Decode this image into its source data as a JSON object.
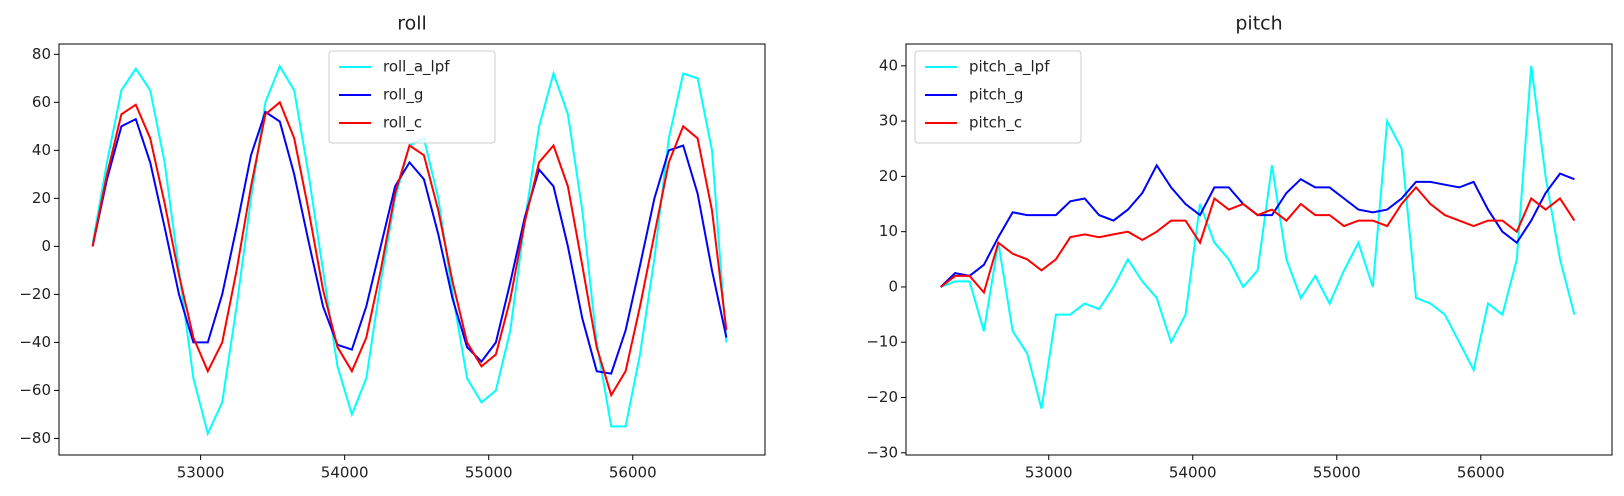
{
  "chart_data": [
    {
      "type": "line",
      "title": "roll",
      "legend": "upper center",
      "x": [
        52250,
        52350,
        52450,
        52550,
        52650,
        52750,
        52850,
        52950,
        53050,
        53150,
        53250,
        53350,
        53450,
        53550,
        53650,
        53750,
        53850,
        53950,
        54050,
        54150,
        54250,
        54350,
        54450,
        54550,
        54650,
        54750,
        54850,
        54950,
        55050,
        55150,
        55250,
        55350,
        55450,
        55550,
        55650,
        55750,
        55850,
        55950,
        56050,
        56150,
        56250,
        56350,
        56450,
        56550,
        56650
      ],
      "series": [
        {
          "name": "roll_a_lpf",
          "color": "#00ffff",
          "values": [
            1,
            35,
            65,
            74,
            65,
            35,
            -10,
            -55,
            -78,
            -65,
            -25,
            20,
            60,
            75,
            65,
            30,
            -10,
            -50,
            -70,
            -55,
            -15,
            20,
            42,
            45,
            20,
            -20,
            -55,
            -65,
            -60,
            -35,
            10,
            50,
            72,
            55,
            15,
            -40,
            -75,
            -75,
            -45,
            -5,
            45,
            72,
            70,
            40,
            -40
          ]
        },
        {
          "name": "roll_g",
          "color": "#0000ff",
          "values": [
            0,
            28,
            50,
            53,
            35,
            8,
            -20,
            -40,
            -40,
            -20,
            8,
            38,
            56,
            52,
            30,
            2,
            -25,
            -41,
            -43,
            -25,
            0,
            25,
            35,
            28,
            5,
            -22,
            -42,
            -48,
            -40,
            -15,
            12,
            32,
            25,
            0,
            -30,
            -52,
            -53,
            -35,
            -8,
            20,
            40,
            42,
            22,
            -10,
            -38
          ]
        },
        {
          "name": "roll_c",
          "color": "#ff0000",
          "values": [
            0,
            30,
            55,
            59,
            45,
            18,
            -12,
            -38,
            -52,
            -40,
            -10,
            25,
            55,
            60,
            45,
            15,
            -18,
            -42,
            -52,
            -38,
            -10,
            22,
            42,
            38,
            15,
            -15,
            -40,
            -50,
            -45,
            -22,
            10,
            35,
            42,
            25,
            -8,
            -42,
            -62,
            -52,
            -25,
            5,
            35,
            50,
            45,
            15,
            -35
          ]
        }
      ],
      "xlim": [
        52017,
        56918
      ],
      "xticks": [
        53000,
        54000,
        55000,
        56000
      ],
      "ylim": [
        -86.9,
        84.3
      ],
      "yticks": [
        {
          "value": -80,
          "label": "−80"
        },
        {
          "value": -60,
          "label": "−60"
        },
        {
          "value": -40,
          "label": "−40"
        },
        {
          "value": -20,
          "label": "−20"
        },
        0,
        20,
        40,
        60,
        80
      ]
    },
    {
      "type": "line",
      "title": "pitch",
      "legend": "upper left",
      "x": [
        52250,
        52350,
        52450,
        52550,
        52650,
        52750,
        52850,
        52950,
        53050,
        53150,
        53250,
        53350,
        53450,
        53550,
        53650,
        53750,
        53850,
        53950,
        54050,
        54150,
        54250,
        54350,
        54450,
        54550,
        54650,
        54750,
        54850,
        54950,
        55050,
        55150,
        55250,
        55350,
        55450,
        55550,
        55650,
        55750,
        55850,
        55950,
        56050,
        56150,
        56250,
        56350,
        56450,
        56550,
        56650
      ],
      "series": [
        {
          "name": "pitch_a_lpf",
          "color": "#00ffff",
          "values": [
            0,
            1,
            1,
            -8,
            8,
            -8,
            -12,
            -22,
            -5,
            -5,
            -3,
            -4,
            0,
            5,
            1,
            -2,
            -10,
            -5,
            15,
            8,
            5,
            0,
            3,
            22,
            5,
            -2,
            2,
            -3,
            3,
            8,
            0,
            30,
            25,
            -2,
            -3,
            -5,
            -10,
            -15,
            -3,
            -5,
            5,
            40,
            20,
            5,
            -5
          ]
        },
        {
          "name": "pitch_g",
          "color": "#0000ff",
          "values": [
            0,
            2.5,
            2,
            4,
            9,
            13.5,
            13,
            13,
            13,
            15.5,
            16,
            13,
            12,
            14,
            17,
            22,
            18,
            15,
            13,
            18,
            18,
            15,
            13,
            13,
            17,
            19.5,
            18,
            18,
            16,
            14,
            13.5,
            14,
            16,
            19,
            19,
            18.5,
            18,
            19,
            14,
            10,
            8,
            12,
            17,
            20.5,
            19.5
          ]
        },
        {
          "name": "pitch_c",
          "color": "#ff0000",
          "values": [
            0,
            2,
            2,
            -1,
            8,
            6,
            5,
            3,
            5,
            9,
            9.5,
            9,
            9.5,
            10,
            8.5,
            10,
            12,
            12,
            8,
            16,
            14,
            15,
            13,
            14,
            12,
            15,
            13,
            13,
            11,
            12,
            12,
            11,
            15,
            18,
            15,
            13,
            12,
            11,
            12,
            12,
            10,
            16,
            14,
            16,
            12
          ]
        }
      ],
      "xlim": [
        52009,
        56911
      ],
      "xticks": [
        53000,
        54000,
        55000,
        56000
      ],
      "ylim": [
        -30.4,
        43.95
      ],
      "yticks": [
        {
          "value": -30,
          "label": "−30"
        },
        {
          "value": -20,
          "label": "−20"
        },
        {
          "value": -10,
          "label": "−10"
        },
        0,
        10,
        20,
        30,
        40
      ]
    }
  ]
}
